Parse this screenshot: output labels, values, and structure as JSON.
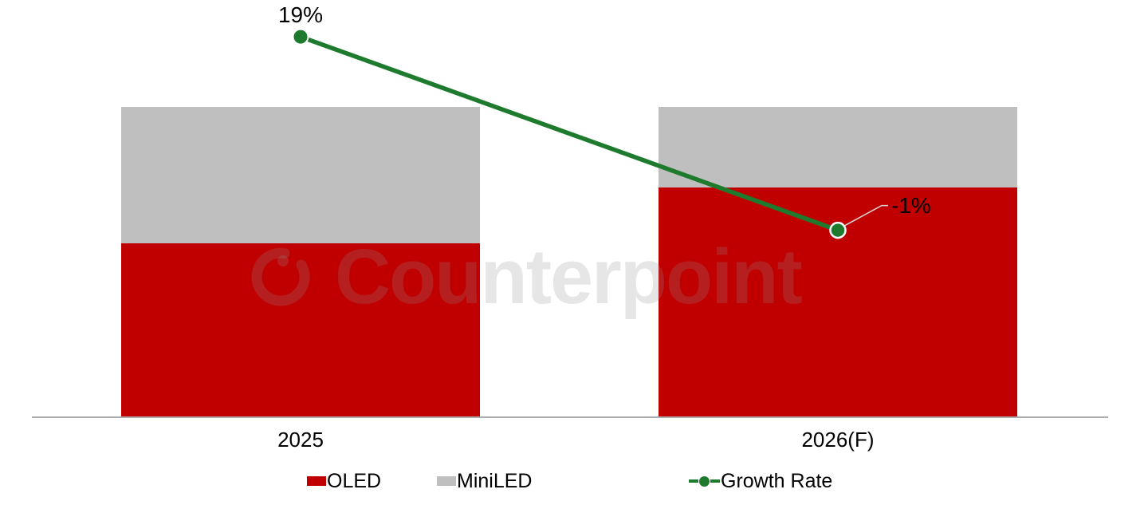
{
  "watermark": {
    "text": "Counterpoint"
  },
  "chart_data": {
    "type": "bar",
    "subtype": "stacked-100-bar-with-growth-line",
    "title": "",
    "xlabel": "",
    "ylabel": "",
    "categories": [
      "2025",
      "2026(F)"
    ],
    "series": [
      {
        "name": "OLED",
        "color": "#C00000",
        "values": [
          56,
          74
        ]
      },
      {
        "name": "MiniLED",
        "color": "#BFBFBF",
        "values": [
          44,
          26
        ]
      }
    ],
    "line_series": {
      "name": "Growth Rate",
      "color": "#1E7B2E",
      "values": [
        19,
        -1
      ],
      "labels": [
        "19%",
        "-1%"
      ]
    },
    "ylim": [
      0,
      100
    ],
    "y_axis_visible": false,
    "grid": false,
    "legend_position": "bottom",
    "growth_axis_range_hint": [
      -20.25,
      22.8
    ]
  },
  "legend": {
    "items": [
      {
        "label": "OLED",
        "color": "#C00000",
        "swatch": "rect"
      },
      {
        "label": "MiniLED",
        "color": "#BFBFBF",
        "swatch": "rect"
      },
      {
        "label": "Growth Rate",
        "color": "#1E7B2E",
        "swatch": "line-dot"
      }
    ]
  }
}
